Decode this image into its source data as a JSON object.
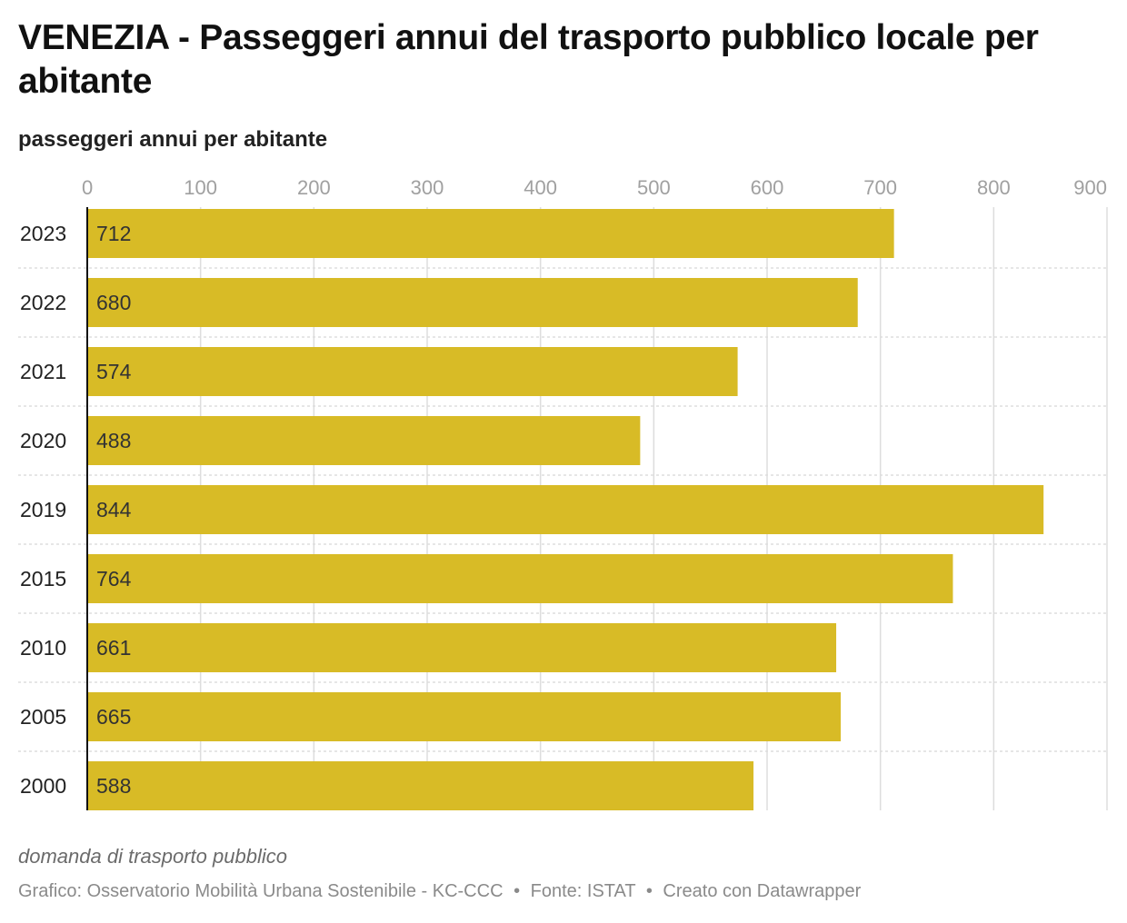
{
  "header": {
    "title": "VENEZIA - Passeggeri annui del trasporto pubblico locale per abitante",
    "subtitle": "passeggeri annui per abitante"
  },
  "footer": {
    "note": "domanda di trasporto pubblico",
    "credit_chart": "Grafico: Osservatorio Mobilità Urbana Sostenibile - KC-CCC",
    "credit_source": "Fonte: ISTAT",
    "credit_tool": "Creato con Datawrapper",
    "separator": "•"
  },
  "colors": {
    "bar": "#d8bb26",
    "grid": "#dddddd",
    "tick_label": "#a0a0a0",
    "category_label": "#222222",
    "value_label": "#333333",
    "axis_line": "#111111"
  },
  "chart_data": {
    "type": "bar",
    "orientation": "horizontal",
    "categories": [
      "2023",
      "2022",
      "2021",
      "2020",
      "2019",
      "2015",
      "2010",
      "2005",
      "2000"
    ],
    "values": [
      712,
      680,
      574,
      488,
      844,
      764,
      661,
      665,
      588
    ],
    "title": "VENEZIA - Passeggeri annui del trasporto pubblico locale per abitante",
    "subtitle": "passeggeri annui per abitante",
    "xlim": [
      0,
      900
    ],
    "x_ticks": [
      0,
      100,
      200,
      300,
      400,
      500,
      600,
      700,
      800,
      900
    ],
    "tick_position": "top",
    "grid": true,
    "value_labels": true,
    "legend": "none"
  }
}
